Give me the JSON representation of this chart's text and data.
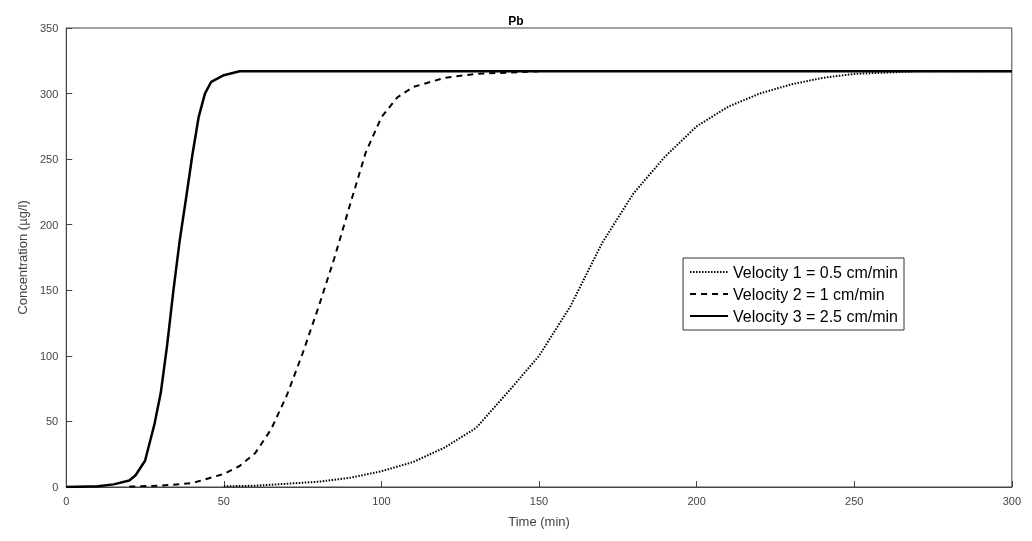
{
  "chart_data": {
    "type": "line",
    "title": "Pb",
    "xlabel": "Time (min)",
    "ylabel": "Concentration (µg/l)",
    "xlim": [
      0,
      300
    ],
    "xticks": [
      0,
      50,
      100,
      150,
      200,
      250,
      300
    ],
    "ylim": [
      0,
      350
    ],
    "yticks": [
      0,
      50,
      100,
      150,
      200,
      250,
      300,
      350
    ],
    "grid": false,
    "legend": "right",
    "marker": "none",
    "series": [
      {
        "name": "Velocity 1 = 0.5 cm/min",
        "color": "#000000",
        "line_style": "dotted",
        "x": [
          50,
          60,
          80,
          90,
          100,
          110,
          120,
          130,
          140,
          150,
          160,
          170,
          180,
          190,
          200,
          210,
          220,
          230,
          240,
          250,
          270,
          300
        ],
        "values": [
          0.5,
          1,
          4,
          7,
          12,
          19,
          30,
          45,
          72,
          100,
          138,
          186,
          224,
          252,
          275,
          290,
          300,
          307,
          312,
          315,
          317,
          317
        ]
      },
      {
        "name": "Velocity 2 = 1 cm/min",
        "color": "#000000",
        "line_style": "dashed",
        "x": [
          20,
          30,
          40,
          50,
          55,
          60,
          65,
          70,
          75,
          80,
          85,
          90,
          95,
          100,
          105,
          110,
          120,
          130,
          150
        ],
        "values": [
          0.3,
          1,
          3,
          10,
          16,
          26,
          44,
          70,
          102,
          137,
          174,
          215,
          255,
          282,
          297,
          305,
          312,
          315,
          317
        ]
      },
      {
        "name": "Velocity 3 = 2.5 cm/min",
        "color": "#000000",
        "line_style": "solid",
        "x": [
          0,
          10,
          15,
          20,
          22,
          25,
          28,
          30,
          32,
          34,
          36,
          38,
          40,
          42,
          44,
          46,
          50,
          55,
          60,
          300
        ],
        "values": [
          0,
          0.5,
          2,
          5,
          9,
          20,
          48,
          72,
          108,
          150,
          188,
          220,
          253,
          282,
          300,
          309,
          314,
          317,
          317,
          317
        ]
      }
    ]
  }
}
